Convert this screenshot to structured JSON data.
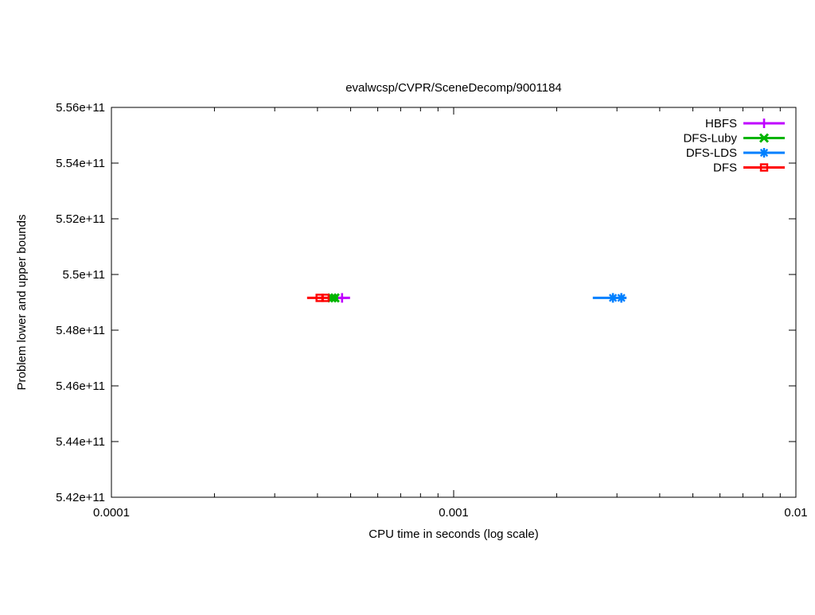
{
  "chart_data": {
    "type": "line",
    "title": "evalwcsp/CVPR/SceneDecomp/9001184",
    "xlabel": "CPU time in seconds (log scale)",
    "ylabel": "Problem lower and upper bounds",
    "grid": false,
    "background": "#ffffff",
    "axis_color": "#000000",
    "x_axis": {
      "scale": "log",
      "min": 0.0001,
      "max": 0.01,
      "ticks": [
        {
          "value": 0.0001,
          "label": "0.0001"
        },
        {
          "value": 0.001,
          "label": "0.001"
        },
        {
          "value": 0.01,
          "label": "0.01"
        }
      ],
      "minor_ticks_multiples": [
        2,
        3,
        4,
        5,
        6,
        7,
        8,
        9
      ]
    },
    "y_axis": {
      "scale": "linear",
      "min": 542000000000,
      "max": 556000000000,
      "ticks": [
        {
          "value": 542000000000,
          "label": "5.42e+11"
        },
        {
          "value": 544000000000,
          "label": "5.44e+11"
        },
        {
          "value": 546000000000,
          "label": "5.46e+11"
        },
        {
          "value": 548000000000,
          "label": "5.48e+11"
        },
        {
          "value": 550000000000,
          "label": "5.5e+11"
        },
        {
          "value": 552000000000,
          "label": "5.52e+11"
        },
        {
          "value": 554000000000,
          "label": "5.54e+11"
        },
        {
          "value": 556000000000,
          "label": "5.56e+11"
        }
      ]
    },
    "legend": {
      "position": "top-right",
      "entries": [
        "HBFS",
        "DFS-Luby",
        "DFS-LDS",
        "DFS"
      ]
    },
    "series": [
      {
        "name": "HBFS",
        "color": "#bf00ff",
        "marker": "plus",
        "line": {
          "x": [
            0.000457,
            0.000498
          ],
          "y": [
            549160000000,
            549160000000
          ]
        },
        "points": {
          "x": [
            0.000472
          ],
          "y": [
            549160000000
          ]
        }
      },
      {
        "name": "DFS-Luby",
        "color": "#00b400",
        "marker": "x",
        "line": {
          "x": [
            0.000432,
            0.00046
          ],
          "y": [
            549160000000,
            549160000000
          ]
        },
        "points": {
          "x": [
            0.000441,
            0.00045
          ],
          "y": [
            549160000000,
            549160000000
          ]
        }
      },
      {
        "name": "DFS-LDS",
        "color": "#0080ff",
        "marker": "asterisk",
        "line": {
          "x": [
            0.00255,
            0.0032
          ],
          "y": [
            549160000000,
            549160000000
          ]
        },
        "points": {
          "x": [
            0.00292,
            0.00309
          ],
          "y": [
            549160000000,
            549160000000
          ]
        }
      },
      {
        "name": "DFS",
        "color": "#ff0000",
        "marker": "square-open",
        "line": {
          "x": [
            0.000373,
            0.000432
          ],
          "y": [
            549160000000,
            549160000000
          ]
        },
        "points": {
          "x": [
            0.000406,
            0.000422
          ],
          "y": [
            549160000000,
            549160000000
          ]
        }
      }
    ]
  }
}
